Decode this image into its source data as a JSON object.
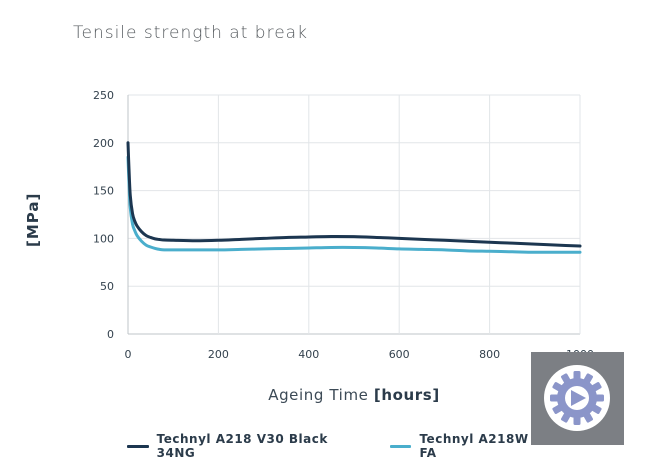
{
  "chart_data": {
    "type": "line",
    "title": "Tensile strength at break",
    "ylabel": "[MPa]",
    "xlabel_prefix": "Ageing Time",
    "xlabel_unit": "[hours]",
    "xlim": [
      0,
      1000
    ],
    "ylim": [
      0,
      250
    ],
    "xticks": [
      0,
      200,
      400,
      600,
      800,
      1000
    ],
    "yticks": [
      0,
      50,
      100,
      150,
      200,
      250
    ],
    "grid": true,
    "legend_position": "bottom",
    "series": [
      {
        "name": "Technyl A218 V30 Black 34NG",
        "color": "#1c3650",
        "x": [
          0,
          2,
          5,
          10,
          15,
          20,
          30,
          40,
          50,
          60,
          70,
          80,
          100,
          150,
          200,
          250,
          300,
          350,
          400,
          450,
          500,
          550,
          600,
          650,
          700,
          750,
          800,
          850,
          900,
          950,
          1000
        ],
        "y": [
          200,
          175,
          145,
          126,
          118,
          113,
          107,
          103,
          101,
          99.5,
          98.8,
          98.3,
          98,
          97.5,
          98,
          99,
          100,
          101,
          101.5,
          102,
          101.8,
          101,
          100,
          99,
          98,
          97,
          96,
          95,
          94,
          93,
          92
        ]
      },
      {
        "name": "Technyl A218W V30 Black FA",
        "color": "#4aaecc",
        "x": [
          0,
          2,
          5,
          10,
          15,
          20,
          30,
          40,
          50,
          60,
          70,
          80,
          100,
          150,
          200,
          250,
          300,
          350,
          400,
          450,
          500,
          550,
          600,
          650,
          700,
          750,
          800,
          850,
          900,
          950,
          1000
        ],
        "y": [
          185,
          160,
          132,
          115,
          108,
          103,
          97,
          93,
          91,
          89.5,
          88.5,
          88,
          88,
          88,
          88,
          88.5,
          89,
          89.5,
          90,
          90.5,
          90.5,
          90,
          89,
          88.5,
          88,
          87,
          86.5,
          86,
          85.5,
          85.5,
          85.5
        ]
      }
    ]
  },
  "logo": {
    "icon": "gear-play-icon",
    "background": "#7c7f84",
    "circle": "#ffffff",
    "gear": "#8b95c9"
  }
}
